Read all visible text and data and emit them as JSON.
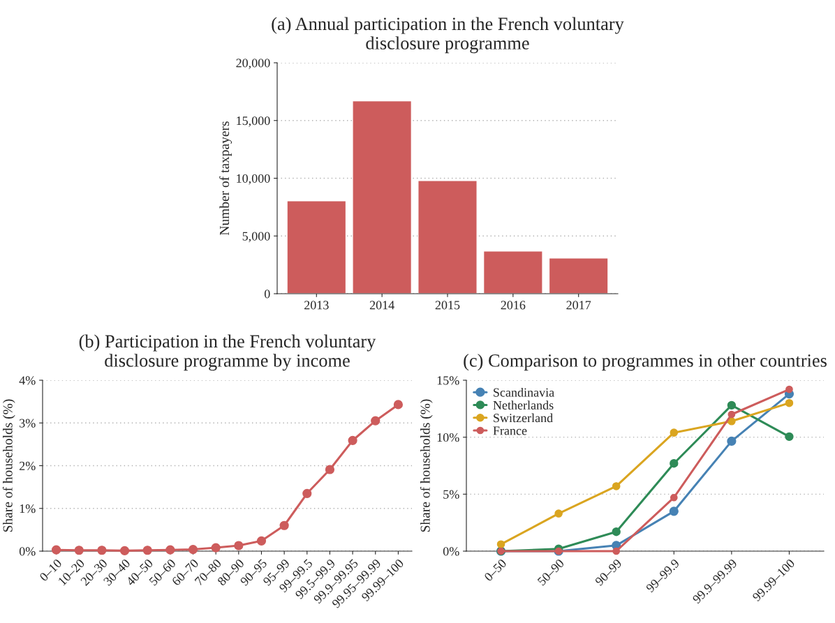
{
  "chart_data": [
    {
      "type": "bar",
      "title": "(a) Annual participation in the French voluntary\ndisclosure programme",
      "ylabel": "Number of taxpayers",
      "categories": [
        "2013",
        "2014",
        "2015",
        "2016",
        "2017"
      ],
      "values": [
        8050,
        16700,
        9800,
        3700,
        3100
      ],
      "color": "#cd5c5c",
      "ylim": [
        0,
        20000
      ],
      "yticks": [
        0,
        {
          "value": 5000,
          "label": "5,000"
        },
        {
          "value": 10000,
          "label": "10,000"
        },
        {
          "value": 15000,
          "label": "15,000"
        },
        {
          "value": 20000,
          "label": "20,000"
        }
      ],
      "grid": "y"
    },
    {
      "type": "line",
      "title": "(b) Participation in the French voluntary\ndisclosure programme by income",
      "ylabel": "Share of households (%)",
      "categories": [
        "0–10",
        "10–20",
        "20–30",
        "30–40",
        "40–50",
        "50–60",
        "60–70",
        "70–80",
        "80–90",
        "90–95",
        "95–99",
        "99–99.5",
        "99.5–99.9",
        "99.9–99.95",
        "99.95–99.99",
        "99.99–100"
      ],
      "series": [
        {
          "color": "#cd5c5c",
          "values": [
            0.03,
            0.02,
            0.02,
            0.01,
            0.02,
            0.03,
            0.04,
            0.08,
            0.13,
            0.24,
            0.6,
            1.35,
            1.91,
            2.59,
            3.05,
            3.43
          ]
        }
      ],
      "ylim": [
        0,
        4
      ],
      "yticks": [
        {
          "value": 0,
          "label": "0%"
        },
        {
          "value": 1,
          "label": "1%"
        },
        {
          "value": 2,
          "label": "2%"
        },
        {
          "value": 3,
          "label": "3%"
        },
        {
          "value": 4,
          "label": "4%"
        }
      ],
      "grid": "y",
      "marker": "circle",
      "line_style": "solid"
    },
    {
      "type": "line",
      "title": "(c) Comparison to programmes in other countries",
      "ylabel": "Share of households (%)",
      "categories": [
        "0–50",
        "50–90",
        "90–99",
        "99–99.9",
        "99.9–99.99",
        "99.99–100"
      ],
      "series": [
        {
          "name": "Scandinavia",
          "color": "#4682b4",
          "values": [
            0,
            0,
            0.5,
            3.5,
            9.65,
            13.8
          ]
        },
        {
          "name": "Netherlands",
          "color": "#2e8b57",
          "values": [
            0,
            0.2,
            1.7,
            7.7,
            12.8,
            10.05
          ]
        },
        {
          "name": "Switzerland",
          "color": "#daa520",
          "values": [
            0.6,
            3.3,
            5.7,
            10.4,
            11.4,
            13.0
          ]
        },
        {
          "name": "France",
          "color": "#cd5c5c",
          "values": [
            0,
            0,
            0,
            4.7,
            12.0,
            14.2
          ]
        }
      ],
      "ylim": [
        0,
        15
      ],
      "yticks": [
        {
          "value": 0,
          "label": "0%"
        },
        {
          "value": 5,
          "label": "5%"
        },
        {
          "value": 10,
          "label": "10%"
        },
        {
          "value": 15,
          "label": "15%"
        }
      ],
      "grid": "y",
      "marker": "circle",
      "line_style": "solid",
      "legend": "top left"
    }
  ]
}
